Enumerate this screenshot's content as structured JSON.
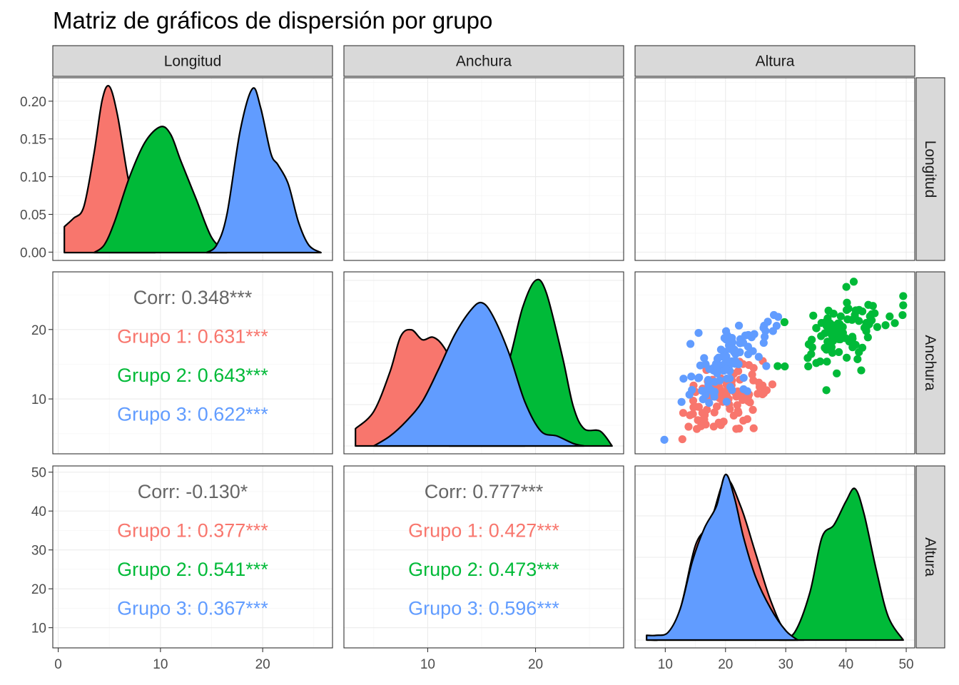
{
  "chart_data": {
    "type": "scatter",
    "title": "Matriz de gráficos de dispersión por grupo",
    "variables": [
      "Longitud",
      "Anchura",
      "Altura"
    ],
    "groups": [
      "Grupo 1",
      "Grupo 2",
      "Grupo 3"
    ],
    "colors": {
      "Grupo 1": "#F8766D",
      "Grupo 2": "#00BA38",
      "Grupo 3": "#619CFF",
      "total": "#666666"
    },
    "ranges": {
      "Longitud": [
        0.6,
        25.7
      ],
      "Anchura": [
        3.3,
        27.1
      ],
      "Altura": [
        6.9,
        49.5
      ]
    },
    "row_axis_ticks": {
      "Longitud": {
        "labels": [
          "0.00",
          "0.05",
          "0.10",
          "0.15",
          "0.20"
        ],
        "values": [
          0,
          0.05,
          0.1,
          0.15,
          0.2
        ],
        "range": [
          -0.011,
          0.231
        ]
      },
      "Anchura": {
        "labels": [
          "10",
          "20"
        ],
        "values": [
          10,
          20
        ],
        "range": [
          2.1,
          28.3
        ]
      },
      "Altura": {
        "labels": [
          "10",
          "20",
          "30",
          "40",
          "50"
        ],
        "values": [
          10,
          20,
          30,
          40,
          50
        ],
        "range": [
          4.8,
          51.6
        ]
      }
    },
    "col_axis_ticks": {
      "Longitud": {
        "labels": [
          "0",
          "10",
          "20"
        ],
        "values": [
          0,
          10,
          20
        ]
      },
      "Anchura": {
        "labels": [
          "10",
          "20"
        ],
        "values": [
          10,
          20
        ]
      },
      "Altura": {
        "labels": [
          "10",
          "20",
          "30",
          "40",
          "50"
        ],
        "values": [
          10,
          20,
          30,
          40,
          50
        ]
      }
    },
    "group_stats": {
      "Grupo 1": {
        "mean": [
          5,
          10,
          20
        ],
        "sd": [
          1.8,
          2.6,
          3.8
        ]
      },
      "Grupo 2": {
        "mean": [
          10,
          20,
          40
        ],
        "sd": [
          2.4,
          2.6,
          3.7
        ]
      },
      "Grupo 3": {
        "mean": [
          19.5,
          15,
          20
        ],
        "sd": [
          1.7,
          3.2,
          3.7
        ]
      }
    },
    "correlations": [
      {
        "row": "Anchura",
        "col": "Longitud",
        "total": "Corr: 0.348***",
        "groups": [
          "Grupo 1: 0.631***",
          "Grupo 2: 0.643***",
          "Grupo 3: 0.622***"
        ]
      },
      {
        "row": "Altura",
        "col": "Longitud",
        "total": "Corr: -0.130*",
        "groups": [
          "Grupo 1: 0.377***",
          "Grupo 2: 0.541***",
          "Grupo 3: 0.367***"
        ]
      },
      {
        "row": "Altura",
        "col": "Anchura",
        "total": "Corr: 0.777***",
        "groups": [
          "Grupo 1: 0.427***",
          "Grupo 2: 0.473***",
          "Grupo 3: 0.596***"
        ]
      }
    ],
    "densities": {
      "Longitud": {
        "Grupo 1": [
          [
            0.6,
            0.034
          ],
          [
            1.5,
            0.045
          ],
          [
            2.5,
            0.06
          ],
          [
            3.5,
            0.13
          ],
          [
            4.3,
            0.2
          ],
          [
            5.0,
            0.218
          ],
          [
            5.8,
            0.18
          ],
          [
            6.8,
            0.1
          ],
          [
            7.8,
            0.04
          ],
          [
            8.5,
            0.012
          ],
          [
            9.5,
            0.0
          ]
        ],
        "Grupo 2": [
          [
            3.5,
            0.0
          ],
          [
            4.5,
            0.01
          ],
          [
            5.5,
            0.04
          ],
          [
            7.0,
            0.1
          ],
          [
            8.5,
            0.145
          ],
          [
            10.0,
            0.165
          ],
          [
            11.0,
            0.155
          ],
          [
            12.0,
            0.12
          ],
          [
            13.5,
            0.07
          ],
          [
            15.0,
            0.02
          ],
          [
            16.5,
            0.0
          ]
        ],
        "Grupo 3": [
          [
            14.5,
            0.0
          ],
          [
            15.5,
            0.01
          ],
          [
            16.5,
            0.05
          ],
          [
            17.8,
            0.16
          ],
          [
            19.0,
            0.215
          ],
          [
            19.8,
            0.19
          ],
          [
            20.8,
            0.13
          ],
          [
            21.5,
            0.115
          ],
          [
            22.5,
            0.09
          ],
          [
            23.5,
            0.04
          ],
          [
            24.5,
            0.01
          ],
          [
            25.7,
            0.0
          ]
        ]
      },
      "Anchura": {
        "Grupo 1": [
          [
            3.3,
            0.035
          ],
          [
            5.0,
            0.07
          ],
          [
            6.5,
            0.15
          ],
          [
            7.5,
            0.222
          ],
          [
            8.5,
            0.235
          ],
          [
            9.5,
            0.215
          ],
          [
            10.5,
            0.22
          ],
          [
            11.5,
            0.2
          ],
          [
            13.0,
            0.14
          ],
          [
            14.5,
            0.08
          ],
          [
            16.0,
            0.04
          ],
          [
            17.5,
            0.01
          ],
          [
            19.0,
            0.0
          ]
        ],
        "Grupo 2": [
          [
            12.0,
            0.0
          ],
          [
            14.0,
            0.03
          ],
          [
            16.0,
            0.1
          ],
          [
            17.5,
            0.17
          ],
          [
            18.8,
            0.28
          ],
          [
            20.0,
            0.335
          ],
          [
            21.0,
            0.31
          ],
          [
            22.5,
            0.18
          ],
          [
            23.5,
            0.08
          ],
          [
            24.5,
            0.035
          ],
          [
            26.0,
            0.03
          ],
          [
            27.1,
            0.0
          ]
        ],
        "Grupo 3": [
          [
            5.0,
            0.0
          ],
          [
            6.5,
            0.02
          ],
          [
            8.0,
            0.05
          ],
          [
            9.5,
            0.09
          ],
          [
            11.0,
            0.155
          ],
          [
            12.5,
            0.225
          ],
          [
            14.0,
            0.275
          ],
          [
            15.0,
            0.29
          ],
          [
            16.0,
            0.265
          ],
          [
            17.5,
            0.19
          ],
          [
            19.0,
            0.09
          ],
          [
            20.5,
            0.03
          ],
          [
            22.0,
            0.02
          ],
          [
            23.5,
            0.005
          ],
          [
            24.5,
            0.0
          ]
        ]
      },
      "Altura": {
        "Grupo 1": [
          [
            7.0,
            0.0
          ],
          [
            10.0,
            0.002
          ],
          [
            12.5,
            0.02
          ],
          [
            15.0,
            0.06
          ],
          [
            17.5,
            0.075
          ],
          [
            20.0,
            0.102
          ],
          [
            22.5,
            0.085
          ],
          [
            25.0,
            0.055
          ],
          [
            27.5,
            0.025
          ],
          [
            30.0,
            0.005
          ],
          [
            33.0,
            0.0
          ]
        ],
        "Grupo 2": [
          [
            29.0,
            0.0
          ],
          [
            31.5,
            0.005
          ],
          [
            34.0,
            0.03
          ],
          [
            36.0,
            0.065
          ],
          [
            38.0,
            0.073
          ],
          [
            40.0,
            0.088
          ],
          [
            41.5,
            0.096
          ],
          [
            43.0,
            0.08
          ],
          [
            45.0,
            0.045
          ],
          [
            47.0,
            0.015
          ],
          [
            49.5,
            0.0
          ]
        ],
        "Grupo 3": [
          [
            6.9,
            0.003
          ],
          [
            8.5,
            0.003
          ],
          [
            10.5,
            0.005
          ],
          [
            12.5,
            0.02
          ],
          [
            14.5,
            0.05
          ],
          [
            16.5,
            0.071
          ],
          [
            18.5,
            0.085
          ],
          [
            20.0,
            0.105
          ],
          [
            21.5,
            0.09
          ],
          [
            23.0,
            0.065
          ],
          [
            25.0,
            0.04
          ],
          [
            27.5,
            0.02
          ],
          [
            30.0,
            0.006
          ],
          [
            32.0,
            0.0
          ]
        ]
      }
    }
  }
}
